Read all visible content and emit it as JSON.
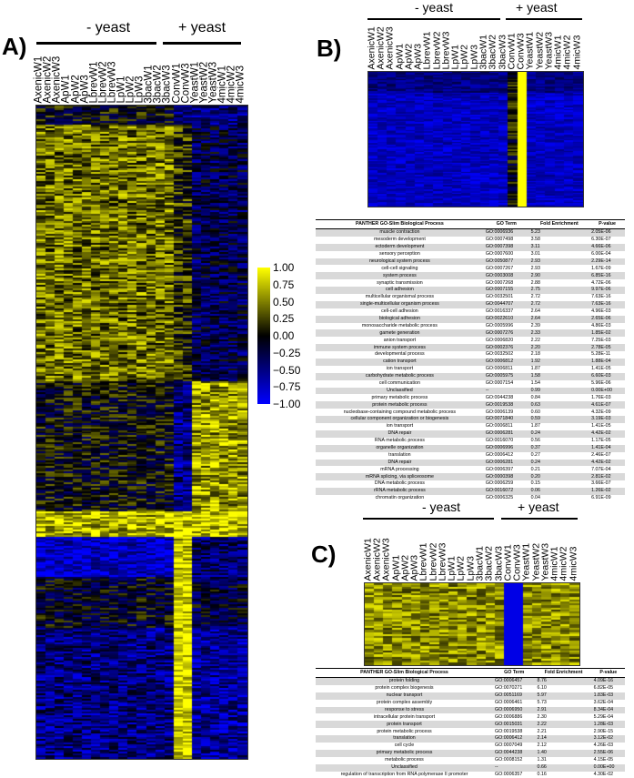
{
  "panels": {
    "A": {
      "letter": "A)",
      "minus": "- yeast",
      "plus": "+ yeast"
    },
    "B": {
      "letter": "B)",
      "minus": "- yeast",
      "plus": "+ yeast"
    },
    "C": {
      "letter": "C)",
      "minus": "- yeast",
      "plus": "+ yeast"
    }
  },
  "columns": [
    "AxenicW1",
    "AxenicW2",
    "AxenicW3",
    "ApW1",
    "ApW2",
    "ApW3",
    "LbrevW1",
    "LbrevW2",
    "LbrevW3",
    "LpW1",
    "LpW2",
    "LpW3",
    "3bacW1",
    "3bacW2",
    "3bacW3",
    "ConvW1",
    "ConvW3",
    "YeastW1",
    "YeastW2",
    "YeastW3",
    "4micW1",
    "4micW2",
    "4micW3"
  ],
  "colors": {
    "low": "#0000ff",
    "mid": "#000000",
    "high": "#ffff00"
  },
  "colorbar": {
    "ticks": [
      "1.00",
      "0.75",
      "0.50",
      "0.25",
      "0.00",
      "−0.25",
      "−0.50",
      "−0.75",
      "−1.00"
    ]
  },
  "tableB": {
    "headers": [
      "PANTHER GO-Slim Biological Process",
      "GO Term",
      "Fold Enrichment",
      "P-value"
    ],
    "rows": [
      [
        "muscle contraction",
        "GO:0006936",
        "5.23",
        "2.05E-06"
      ],
      [
        "mesoderm development",
        "GO:0007498",
        "3.58",
        "6.30E-07"
      ],
      [
        "ectoderm development",
        "GO:0007398",
        "3.11",
        "4.66E-06"
      ],
      [
        "sensory perception",
        "GO:0007600",
        "3.01",
        "6.00E-04"
      ],
      [
        "neurological system process",
        "GO:0050877",
        "2.93",
        "2.29E-14"
      ],
      [
        "cell-cell signaling",
        "GO:0007267",
        "2.93",
        "1.67E-09"
      ],
      [
        "system process",
        "GO:0003008",
        "2.90",
        "6.85E-16"
      ],
      [
        "synaptic transmission",
        "GO:0007268",
        "2.88",
        "4.72E-06"
      ],
      [
        "cell adhesion",
        "GO:0007155",
        "2.75",
        "9.97E-06"
      ],
      [
        "multicellular organismal process",
        "GO:0032501",
        "2.72",
        "7.63E-16"
      ],
      [
        "single-multicellular organism process",
        "GO:0044707",
        "2.72",
        "7.63E-16"
      ],
      [
        "cell-cell adhesion",
        "GO:0016337",
        "2.64",
        "4.96E-03"
      ],
      [
        "biological adhesion",
        "GO:0022610",
        "2.64",
        "2.65E-06"
      ],
      [
        "monosaccharide metabolic process",
        "GO:0005996",
        "2.39",
        "4.86E-03"
      ],
      [
        "gamete generation",
        "GO:0007276",
        "2.33",
        "1.85E-02"
      ],
      [
        "anion transport",
        "GO:0006820",
        "2.22",
        "7.25E-03"
      ],
      [
        "immune system process",
        "GO:0002376",
        "2.20",
        "2.78E-05"
      ],
      [
        "developmental process",
        "GO:0032502",
        "2.18",
        "5.28E-11"
      ],
      [
        "cation transport",
        "GO:0006812",
        "1.92",
        "1.88E-04"
      ],
      [
        "ion transport",
        "GO:0006811",
        "1.87",
        "1.41E-05"
      ],
      [
        "carbohydrate metabolic process",
        "GO:0005975",
        "1.58",
        "6.60E-03"
      ],
      [
        "cell communication",
        "GO:0007154",
        "1.54",
        "5.96E-06"
      ],
      [
        "Unclassified",
        "--",
        "0.99",
        "0.00E+00"
      ],
      [
        "primary metabolic process",
        "GO:0044238",
        "0.84",
        "1.76E-03"
      ],
      [
        "protein metabolic process",
        "GO:0019538",
        "0.63",
        "4.61E-07"
      ],
      [
        "nucleobase-containing compound metabolic process",
        "GO:0006139",
        "0.60",
        "4.32E-09"
      ],
      [
        "cellular component organization or biogenesis",
        "GO:0071840",
        "0.59",
        "3.19E-03"
      ],
      [
        "ion transport",
        "GO:0006811",
        "1.87",
        "1.41E-05"
      ],
      [
        "DNA repair",
        "GO:0006281",
        "0.24",
        "4.42E-02"
      ],
      [
        "RNA metabolic process",
        "GO:0016070",
        "0.56",
        "1.17E-05"
      ],
      [
        "organelle organization",
        "GO:0006996",
        "0.37",
        "1.41E-04"
      ],
      [
        "translation",
        "GO:0006412",
        "0.27",
        "2.46E-07"
      ],
      [
        "DNA repair",
        "GO:0006281",
        "0.24",
        "4.42E-02"
      ],
      [
        "mRNA processing",
        "GO:0006397",
        "0.21",
        "7.07E-04"
      ],
      [
        "mRNA splicing, via spliceosome",
        "GO:0000398",
        "0.20",
        "2.81E-02"
      ],
      [
        "DNA metabolic process",
        "GO:0006259",
        "0.15",
        "3.66E-07"
      ],
      [
        "rRNA metabolic process",
        "GO:0016072",
        "0.06",
        "1.26E-02"
      ],
      [
        "chromatin organization",
        "GO:0006325",
        "0.04",
        "6.91E-09"
      ]
    ]
  },
  "tableC": {
    "headers": [
      "PANTHER GO-Slim Biological Process",
      "GO Term",
      "Fold Enrichment",
      "P-value"
    ],
    "rows": [
      [
        "protein folding",
        "GO:0006457",
        "8.76",
        "4.09E-16"
      ],
      [
        "protein complex biogenesis",
        "GO:0070271",
        "6.10",
        "6.82E-05"
      ],
      [
        "nuclear transport",
        "GO:0051169",
        "5.97",
        "1.83E-03"
      ],
      [
        "protein complex assembly",
        "GO:0006461",
        "5.73",
        "3.62E-04"
      ],
      [
        "response to stress",
        "GO:0006950",
        "2.91",
        "8.34E-04"
      ],
      [
        "intracellular protein transport",
        "GO:0006886",
        "2.30",
        "5.29E-04"
      ],
      [
        "protein transport",
        "GO:0015031",
        "2.22",
        "1.28E-03"
      ],
      [
        "protein metabolic process",
        "GO:0019538",
        "2.21",
        "2.90E-15"
      ],
      [
        "translation",
        "GO:0006412",
        "2.14",
        "3.12E-02"
      ],
      [
        "cell cycle",
        "GO:0007049",
        "2.12",
        "4.26E-03"
      ],
      [
        "primary metabolic process",
        "GO:0044238",
        "1.40",
        "2.55E-06"
      ],
      [
        "metabolic process",
        "GO:0008152",
        "1.31",
        "4.15E-05"
      ],
      [
        "Unclassified",
        "--",
        "0.66",
        "0.00E+00"
      ],
      [
        "regulation of transcription from RNA polymerase II promoter",
        "GO:0006357",
        "0.16",
        "4.30E-02"
      ]
    ]
  }
}
